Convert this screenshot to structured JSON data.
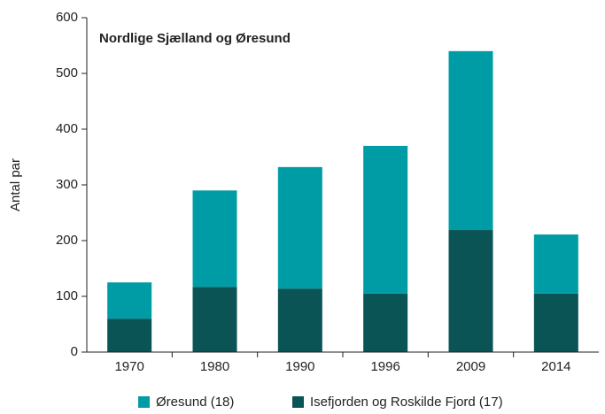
{
  "chart_data": {
    "type": "stacked_bar",
    "title": "Nordlige Sjælland og Øresund",
    "y_label": "Antal par",
    "categories": [
      "1970",
      "1980",
      "1990",
      "1996",
      "2009",
      "2014"
    ],
    "series": [
      {
        "name": "Øresund (18)",
        "color": "#009ca6",
        "values": [
          65,
          173,
          218,
          265,
          321,
          106
        ]
      },
      {
        "name": "Isefjorden og Roskilde Fjord (17)",
        "color": "#0a5456",
        "values": [
          60,
          117,
          114,
          105,
          219,
          105
        ]
      }
    ],
    "ylim": [
      0,
      600
    ],
    "yticks": [
      0,
      100,
      200,
      300,
      400,
      500,
      600
    ],
    "legend": "bottom"
  }
}
